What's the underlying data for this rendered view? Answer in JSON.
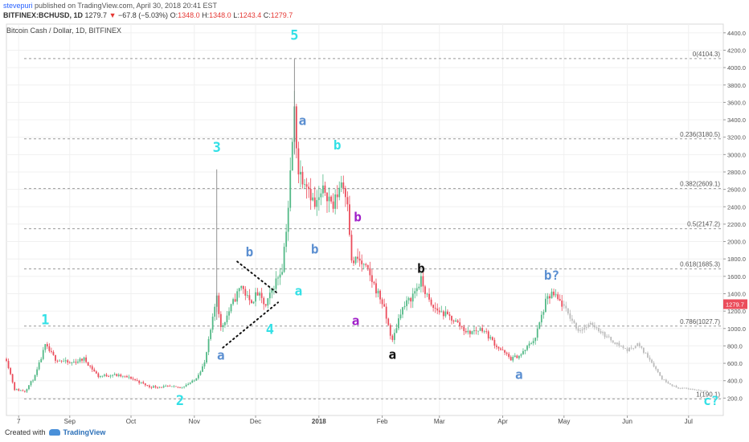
{
  "header": {
    "user": "stevepuri",
    "published": "published on TradingView.com, April 30, 2018 20:41 EST",
    "symbol": "BITFINEX:BCHUSD, 1D",
    "last": "1279.7",
    "change": "−67.8 (−5.03%)",
    "open_label": "O:",
    "open": "1348.0",
    "high_label": "H:",
    "high": "1348.0",
    "low_label": "L:",
    "low": "1243.4",
    "close_label": "C:",
    "close": "1279.7"
  },
  "pane_title": "Bitcoin Cash / Dollar, 1D, BITFINEX",
  "footer": {
    "created_with": "Created with",
    "brand": "TradingView"
  },
  "colors": {
    "up": "#53b987",
    "down": "#eb4d5c",
    "cyan": "#33e0e6",
    "blue": "#5b8fd1",
    "purple": "#a020c8",
    "black": "#111111",
    "projection": "#bbbbbb"
  },
  "chart_data": {
    "type": "candlestick",
    "title": "Bitcoin Cash / Dollar, 1D, BITFINEX",
    "last_price_label": "1279.7",
    "x_ticks": [
      "7",
      "Sep",
      "Oct",
      "Nov",
      "Dec",
      "2018",
      "Feb",
      "Mar",
      "Apr",
      "May",
      "Jun",
      "Jul"
    ],
    "x_tick_dates": [
      "2017-08-07",
      "2017-09-01",
      "2017-10-01",
      "2017-11-01",
      "2017-12-01",
      "2018-01-01",
      "2018-02-01",
      "2018-03-01",
      "2018-04-01",
      "2018-05-01",
      "2018-06-01",
      "2018-07-01"
    ],
    "x_range": [
      "2017-08-01",
      "2018-07-18"
    ],
    "y_ticks": [
      "200.0",
      "400.0",
      "600.0",
      "800.0",
      "1000.0",
      "1200.0",
      "1400.0",
      "1600.0",
      "1800.0",
      "2000.0",
      "2200.0",
      "2400.0",
      "2600.0",
      "2800.0",
      "3000.0",
      "3200.0",
      "3400.0",
      "3600.0",
      "3800.0",
      "4000.0",
      "4200.0",
      "4400.0"
    ],
    "ylim": [
      0,
      4500
    ],
    "grid": true,
    "fib_levels": [
      {
        "label": "0(4104.3)",
        "value": 4104.3
      },
      {
        "label": "0.236(3180.5)",
        "value": 3180.5
      },
      {
        "label": "0.382(2609.1)",
        "value": 2609.1
      },
      {
        "label": "0.5(2147.2)",
        "value": 2147.2
      },
      {
        "label": "0.618(1685.3)",
        "value": 1685.3
      },
      {
        "label": "0.786(1027.7)",
        "value": 1027.7
      },
      {
        "label": "1(190.1)",
        "value": 190.1
      }
    ],
    "price_path": [
      [
        "2017-08-01",
        650
      ],
      [
        "2017-08-05",
        300
      ],
      [
        "2017-08-10",
        280
      ],
      [
        "2017-08-15",
        450
      ],
      [
        "2017-08-20",
        800
      ],
      [
        "2017-08-25",
        650
      ],
      [
        "2017-09-01",
        600
      ],
      [
        "2017-09-08",
        650
      ],
      [
        "2017-09-15",
        450
      ],
      [
        "2017-09-22",
        470
      ],
      [
        "2017-10-01",
        430
      ],
      [
        "2017-10-10",
        330
      ],
      [
        "2017-10-20",
        330
      ],
      [
        "2017-10-25",
        320
      ],
      [
        "2017-11-01",
        400
      ],
      [
        "2017-11-06",
        600
      ],
      [
        "2017-11-10",
        1100
      ],
      [
        "2017-11-12",
        1400
      ],
      [
        "2017-11-14",
        1000
      ],
      [
        "2017-11-18",
        1200
      ],
      [
        "2017-11-24",
        1500
      ],
      [
        "2017-11-28",
        1300
      ],
      [
        "2017-12-02",
        1400
      ],
      [
        "2017-12-06",
        1250
      ],
      [
        "2017-12-10",
        1500
      ],
      [
        "2017-12-14",
        1700
      ],
      [
        "2017-12-17",
        2400
      ],
      [
        "2017-12-20",
        3500
      ],
      [
        "2017-12-22",
        2800
      ],
      [
        "2017-12-26",
        2700
      ],
      [
        "2017-12-30",
        2400
      ],
      [
        "2018-01-04",
        2600
      ],
      [
        "2018-01-08",
        2400
      ],
      [
        "2018-01-12",
        2700
      ],
      [
        "2018-01-15",
        2500
      ],
      [
        "2018-01-17",
        1750
      ],
      [
        "2018-01-20",
        1800
      ],
      [
        "2018-01-25",
        1650
      ],
      [
        "2018-02-01",
        1300
      ],
      [
        "2018-02-06",
        850
      ],
      [
        "2018-02-10",
        1200
      ],
      [
        "2018-02-15",
        1350
      ],
      [
        "2018-02-20",
        1550
      ],
      [
        "2018-02-25",
        1250
      ],
      [
        "2018-03-01",
        1200
      ],
      [
        "2018-03-08",
        1100
      ],
      [
        "2018-03-15",
        950
      ],
      [
        "2018-03-22",
        1000
      ],
      [
        "2018-03-29",
        800
      ],
      [
        "2018-04-05",
        650
      ],
      [
        "2018-04-10",
        700
      ],
      [
        "2018-04-17",
        900
      ],
      [
        "2018-04-22",
        1300
      ],
      [
        "2018-04-25",
        1400
      ],
      [
        "2018-04-30",
        1280
      ]
    ],
    "projection_path": [
      [
        "2018-04-30",
        1280
      ],
      [
        "2018-05-08",
        980
      ],
      [
        "2018-05-15",
        1050
      ],
      [
        "2018-05-22",
        900
      ],
      [
        "2018-06-01",
        750
      ],
      [
        "2018-06-06",
        820
      ],
      [
        "2018-06-12",
        650
      ],
      [
        "2018-06-18",
        420
      ],
      [
        "2018-06-25",
        320
      ],
      [
        "2018-07-03",
        300
      ],
      [
        "2018-07-10",
        280
      ]
    ],
    "wave_labels": [
      {
        "text": "1",
        "date": "2017-08-20",
        "price": 1050,
        "color": "cyan"
      },
      {
        "text": "2",
        "date": "2017-10-25",
        "price": 120,
        "color": "cyan"
      },
      {
        "text": "3",
        "date": "2017-11-12",
        "price": 3030,
        "color": "cyan"
      },
      {
        "text": "4",
        "date": "2017-12-08",
        "price": 940,
        "color": "cyan"
      },
      {
        "text": "5",
        "date": "2017-12-20",
        "price": 4320,
        "color": "cyan"
      },
      {
        "text": "a",
        "date": "2017-11-14",
        "price": 640,
        "color": "blue"
      },
      {
        "text": "b",
        "date": "2017-11-28",
        "price": 1830,
        "color": "blue"
      },
      {
        "text": "a",
        "date": "2017-12-22",
        "price": 1380,
        "color": "cyan"
      },
      {
        "text": "a",
        "date": "2017-12-24",
        "price": 3340,
        "color": "blue"
      },
      {
        "text": "b",
        "date": "2017-12-30",
        "price": 1860,
        "color": "blue"
      },
      {
        "text": "b",
        "date": "2018-01-10",
        "price": 3060,
        "color": "cyan"
      },
      {
        "text": "b",
        "date": "2018-01-20",
        "price": 2230,
        "color": "purple"
      },
      {
        "text": "a",
        "date": "2018-01-19",
        "price": 1040,
        "color": "purple"
      },
      {
        "text": "b",
        "date": "2018-02-20",
        "price": 1640,
        "color": "black"
      },
      {
        "text": "a",
        "date": "2018-02-06",
        "price": 650,
        "color": "black"
      },
      {
        "text": "a",
        "date": "2018-04-09",
        "price": 420,
        "color": "blue"
      },
      {
        "text": "b?",
        "date": "2018-04-25",
        "price": 1560,
        "color": "blue"
      },
      {
        "text": "c?",
        "date": "2018-07-12",
        "price": 120,
        "color": "cyan"
      }
    ],
    "triangle": [
      {
        "from": [
          "2017-11-15",
          780
        ],
        "to": [
          "2017-12-12",
          1300
        ]
      },
      {
        "from": [
          "2017-11-22",
          1770
        ],
        "to": [
          "2017-12-12",
          1400
        ]
      }
    ]
  }
}
